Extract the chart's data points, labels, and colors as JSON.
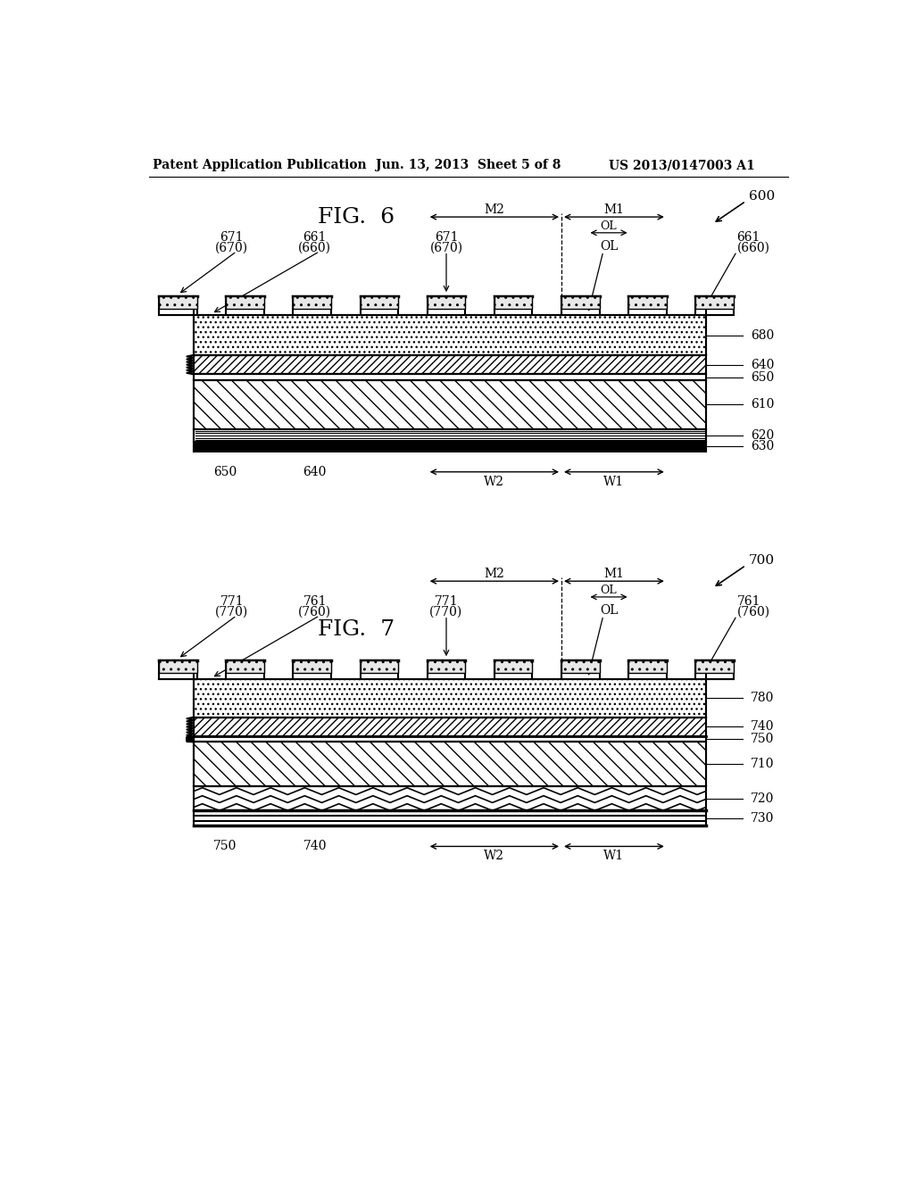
{
  "header_left": "Patent Application Publication",
  "header_center": "Jun. 13, 2013  Sheet 5 of 8",
  "header_right": "US 2013/0147003 A1",
  "fig6_title": "FIG.  6",
  "fig7_title": "FIG.  7",
  "bg_color": "#ffffff",
  "fig6_label": "600",
  "fig7_label": "700",
  "fig6_layers_right": [
    "680",
    "640",
    "650",
    "610",
    "620",
    "630"
  ],
  "fig7_layers_right": [
    "780",
    "740",
    "750",
    "710",
    "720",
    "730"
  ]
}
